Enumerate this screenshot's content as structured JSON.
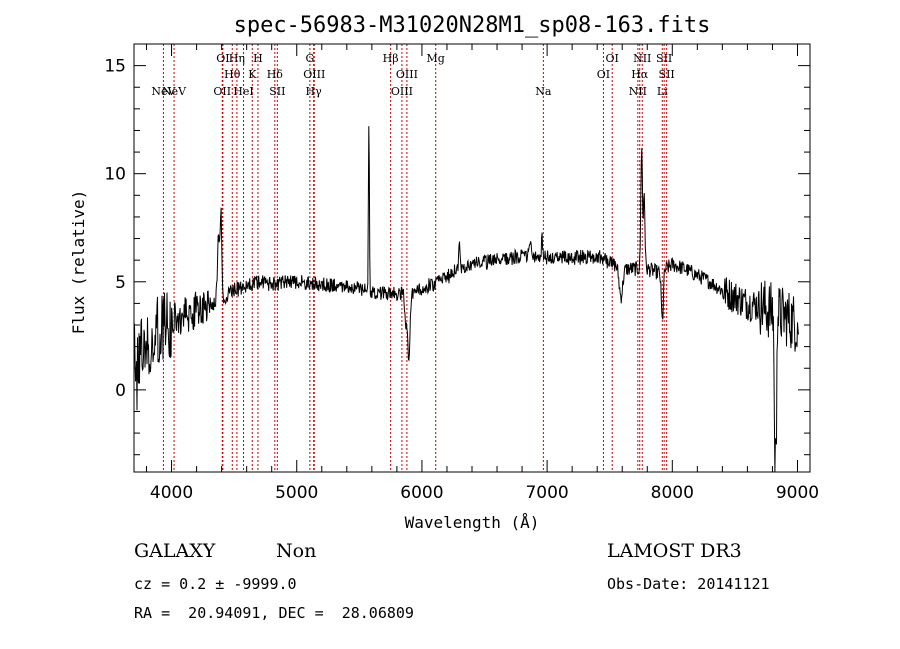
{
  "chart_data": {
    "type": "line",
    "title": "spec-56983-M31020N28M1_sp08-163.fits",
    "xlabel": "Wavelength (Å)",
    "ylabel": "Flux (relative)",
    "xlim": [
      3700,
      9100
    ],
    "ylim": [
      -3.8,
      16
    ],
    "xticks": [
      4000,
      5000,
      6000,
      7000,
      8000,
      9000
    ],
    "yticks": [
      0,
      5,
      10,
      15
    ],
    "xminor_step": 200,
    "yminor_step": 1,
    "line_color": "#000000",
    "marker_color": "#cc0000",
    "lines": [
      {
        "label": "NeV",
        "wl": 3935,
        "row": 3
      },
      {
        "label": "NeV",
        "wl": 4020,
        "row": 2
      },
      {
        "label": "OII",
        "wl": 4405,
        "row": 3
      },
      {
        "label": "OI",
        "wl": 4410,
        "row": 0
      },
      {
        "label": "Hθ",
        "wl": 4485,
        "row": 1
      },
      {
        "label": "Hη",
        "wl": 4522,
        "row": 0
      },
      {
        "label": "HeI",
        "wl": 4575,
        "row": 3
      },
      {
        "label": "K",
        "wl": 4645,
        "row": 1
      },
      {
        "label": "H",
        "wl": 4690,
        "row": 0
      },
      {
        "label": "Hδ",
        "wl": 4825,
        "row": 1
      },
      {
        "label": "SII",
        "wl": 4845,
        "row": 2
      },
      {
        "label": "G",
        "wl": 5105,
        "row": 0
      },
      {
        "label": "OIII",
        "wl": 5140,
        "row": 1
      },
      {
        "label": "Hγ",
        "wl": 5135,
        "row": 2
      },
      {
        "label": "Hβ",
        "wl": 5750,
        "row": 0
      },
      {
        "label": "OIII",
        "wl": 5880,
        "row": 1
      },
      {
        "label": "OIII",
        "wl": 5840,
        "row": 2
      },
      {
        "label": "Mg",
        "wl": 6110,
        "row": 0
      },
      {
        "label": "Na",
        "wl": 6970,
        "row": 2
      },
      {
        "label": "OI",
        "wl": 7520,
        "row": 0
      },
      {
        "label": "OI",
        "wl": 7450,
        "row": 1
      },
      {
        "label": "NII",
        "wl": 7760,
        "row": 0
      },
      {
        "label": "Hα",
        "wl": 7740,
        "row": 1
      },
      {
        "label": "NII",
        "wl": 7725,
        "row": 2
      },
      {
        "label": "SII",
        "wl": 7935,
        "row": 0
      },
      {
        "label": "SII",
        "wl": 7955,
        "row": 1
      },
      {
        "label": "Li",
        "wl": 7920,
        "row": 2
      }
    ],
    "continuum": [
      [
        3700,
        1.6
      ],
      [
        3800,
        2.2
      ],
      [
        3900,
        2.8
      ],
      [
        4000,
        3.1
      ],
      [
        4100,
        3.4
      ],
      [
        4200,
        3.7
      ],
      [
        4300,
        3.9
      ],
      [
        4400,
        4.2
      ],
      [
        4500,
        4.6
      ],
      [
        4600,
        4.8
      ],
      [
        4700,
        5.0
      ],
      [
        4800,
        4.9
      ],
      [
        5000,
        5.0
      ],
      [
        5200,
        4.9
      ],
      [
        5400,
        4.8
      ],
      [
        5500,
        4.7
      ],
      [
        5600,
        4.5
      ],
      [
        5700,
        4.5
      ],
      [
        5800,
        4.4
      ],
      [
        5900,
        4.5
      ],
      [
        6000,
        4.7
      ],
      [
        6100,
        4.9
      ],
      [
        6200,
        5.2
      ],
      [
        6300,
        5.7
      ],
      [
        6500,
        5.9
      ],
      [
        6700,
        6.1
      ],
      [
        6900,
        6.2
      ],
      [
        7000,
        6.1
      ],
      [
        7200,
        6.1
      ],
      [
        7400,
        6.2
      ],
      [
        7500,
        5.9
      ],
      [
        7600,
        5.6
      ],
      [
        7700,
        5.6
      ],
      [
        7800,
        5.6
      ],
      [
        7900,
        5.4
      ],
      [
        8000,
        5.8
      ],
      [
        8100,
        5.6
      ],
      [
        8200,
        5.3
      ],
      [
        8300,
        5.0
      ],
      [
        8400,
        4.6
      ],
      [
        8500,
        4.3
      ],
      [
        8600,
        4.0
      ],
      [
        8700,
        3.9
      ],
      [
        8800,
        3.6
      ],
      [
        8900,
        3.4
      ],
      [
        9010,
        3.0
      ]
    ],
    "features": [
      {
        "wl": 4375,
        "amp": 3.2,
        "w": 8
      },
      {
        "wl": 4395,
        "amp": 3.9,
        "w": 6
      },
      {
        "wl": 5577,
        "amp": 7.8,
        "w": 4
      },
      {
        "wl": 5895,
        "amp": -3.0,
        "w": 10
      },
      {
        "wl": 5870,
        "amp": -1.6,
        "w": 8
      },
      {
        "wl": 7590,
        "amp": -1.3,
        "w": 14
      },
      {
        "wl": 7755,
        "amp": 5.8,
        "w": 6
      },
      {
        "wl": 7775,
        "amp": 3.6,
        "w": 6
      },
      {
        "wl": 7920,
        "amp": -2.3,
        "w": 8
      },
      {
        "wl": 8820,
        "amp": -7.5,
        "w": 5
      },
      {
        "wl": 8830,
        "amp": -6.0,
        "w": 3
      },
      {
        "wl": 6300,
        "amp": 1.1,
        "w": 5
      },
      {
        "wl": 6865,
        "amp": 0.9,
        "w": 5
      },
      {
        "wl": 6960,
        "amp": 1.0,
        "w": 4
      }
    ]
  },
  "info": {
    "class": "GALAXY",
    "subclass": "Non",
    "survey": "LAMOST DR3",
    "cz": "cz = 0.2 ± -9999.0",
    "obs_date": "Obs-Date: 20141121",
    "coords": "RA =  20.94091, DEC =  28.06809"
  }
}
